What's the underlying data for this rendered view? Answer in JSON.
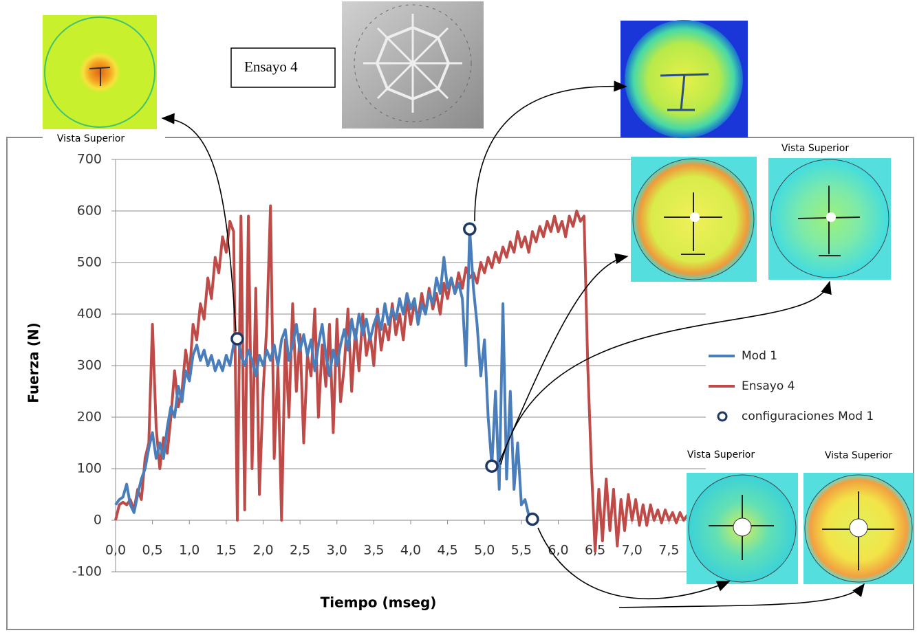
{
  "chart_data": {
    "type": "line",
    "y_label": "Fuerza (N)",
    "x_label": "Tiempo (mseg)",
    "annotations": [
      "Vista Superior",
      "Vista Superior",
      "Vista Superior",
      "Vista Superior",
      "Ensayo 4"
    ],
    "xlim": [
      0,
      8
    ],
    "ylim": [
      -100,
      700
    ],
    "yticks": [
      -100,
      0,
      100,
      200,
      300,
      400,
      500,
      600,
      700
    ],
    "xticks": [
      {
        "value": 0,
        "label": "0,0"
      },
      {
        "value": 0.5,
        "label": "0,5"
      },
      {
        "value": 1,
        "label": "1,0"
      },
      {
        "value": 1.5,
        "label": "1,5"
      },
      {
        "value": 2,
        "label": "2,0"
      },
      {
        "value": 2.5,
        "label": "2,5"
      },
      {
        "value": 3,
        "label": "3,0"
      },
      {
        "value": 3.5,
        "label": "3,5"
      },
      {
        "value": 4,
        "label": "4,0"
      },
      {
        "value": 4.5,
        "label": "4,5"
      },
      {
        "value": 5,
        "label": "5,0"
      },
      {
        "value": 5.5,
        "label": "5,5"
      },
      {
        "value": 6,
        "label": "6,0"
      },
      {
        "value": 6.5,
        "label": "6,5"
      },
      {
        "value": 7,
        "label": "7,0"
      },
      {
        "value": 7.5,
        "label": "7,5"
      }
    ],
    "grid": true,
    "series": [
      {
        "name": "Mod 1",
        "color": "#4a7ebb",
        "style": "line",
        "x": [
          0,
          0.05,
          0.1,
          0.15,
          0.2,
          0.25,
          0.3,
          0.35,
          0.4,
          0.45,
          0.5,
          0.55,
          0.6,
          0.65,
          0.7,
          0.75,
          0.8,
          0.85,
          0.9,
          0.95,
          1,
          1.05,
          1.1,
          1.15,
          1.2,
          1.25,
          1.3,
          1.35,
          1.4,
          1.45,
          1.5,
          1.55,
          1.6,
          1.65,
          1.7,
          1.75,
          1.8,
          1.85,
          1.9,
          1.95,
          2,
          2.05,
          2.1,
          2.15,
          2.2,
          2.25,
          2.3,
          2.35,
          2.4,
          2.45,
          2.5,
          2.55,
          2.6,
          2.65,
          2.7,
          2.75,
          2.8,
          2.85,
          2.9,
          2.95,
          3,
          3.05,
          3.1,
          3.15,
          3.2,
          3.25,
          3.3,
          3.35,
          3.4,
          3.45,
          3.5,
          3.55,
          3.6,
          3.65,
          3.7,
          3.75,
          3.8,
          3.85,
          3.9,
          3.95,
          4,
          4.05,
          4.1,
          4.15,
          4.2,
          4.25,
          4.3,
          4.35,
          4.4,
          4.45,
          4.5,
          4.55,
          4.6,
          4.65,
          4.7,
          4.75,
          4.8,
          4.85,
          4.9,
          4.95,
          5,
          5.05,
          5.1,
          5.15,
          5.2,
          5.25,
          5.3,
          5.35,
          5.4,
          5.45,
          5.5,
          5.55,
          5.6,
          5.65
        ],
        "values": [
          30,
          40,
          45,
          70,
          30,
          15,
          50,
          80,
          100,
          140,
          170,
          120,
          150,
          120,
          180,
          220,
          200,
          260,
          230,
          290,
          270,
          320,
          340,
          310,
          330,
          300,
          320,
          290,
          310,
          290,
          320,
          300,
          340,
          355,
          320,
          300,
          330,
          310,
          280,
          320,
          300,
          330,
          310,
          340,
          300,
          350,
          370,
          310,
          340,
          380,
          330,
          360,
          320,
          350,
          290,
          340,
          380,
          320,
          280,
          330,
          300,
          340,
          370,
          330,
          390,
          350,
          400,
          360,
          390,
          350,
          380,
          400,
          370,
          420,
          380,
          410,
          390,
          430,
          400,
          440,
          410,
          430,
          380,
          420,
          400,
          440,
          420,
          470,
          440,
          510,
          450,
          470,
          440,
          460,
          430,
          300,
          565,
          450,
          380,
          280,
          350,
          200,
          105,
          250,
          60,
          420,
          80,
          250,
          60,
          150,
          30,
          40,
          10,
          2
        ]
      },
      {
        "name": "Ensayo 4",
        "color": "#be4b48",
        "style": "line",
        "x": [
          0,
          0.05,
          0.1,
          0.15,
          0.2,
          0.25,
          0.3,
          0.35,
          0.4,
          0.45,
          0.5,
          0.55,
          0.6,
          0.65,
          0.7,
          0.75,
          0.8,
          0.85,
          0.9,
          0.95,
          1,
          1.05,
          1.1,
          1.15,
          1.2,
          1.25,
          1.3,
          1.35,
          1.4,
          1.45,
          1.5,
          1.55,
          1.6,
          1.65,
          1.7,
          1.75,
          1.8,
          1.85,
          1.9,
          1.95,
          2,
          2.05,
          2.1,
          2.15,
          2.2,
          2.25,
          2.3,
          2.35,
          2.4,
          2.45,
          2.5,
          2.55,
          2.6,
          2.65,
          2.7,
          2.75,
          2.8,
          2.85,
          2.9,
          2.95,
          3,
          3.05,
          3.1,
          3.15,
          3.2,
          3.25,
          3.3,
          3.35,
          3.4,
          3.45,
          3.5,
          3.55,
          3.6,
          3.65,
          3.7,
          3.75,
          3.8,
          3.85,
          3.9,
          3.95,
          4,
          4.05,
          4.1,
          4.15,
          4.2,
          4.25,
          4.3,
          4.35,
          4.4,
          4.45,
          4.5,
          4.55,
          4.6,
          4.65,
          4.7,
          4.75,
          4.8,
          4.85,
          4.9,
          4.95,
          5,
          5.05,
          5.1,
          5.15,
          5.2,
          5.25,
          5.3,
          5.35,
          5.4,
          5.45,
          5.5,
          5.55,
          5.6,
          5.65,
          5.7,
          5.75,
          5.8,
          5.85,
          5.9,
          5.95,
          6,
          6.05,
          6.1,
          6.15,
          6.2,
          6.25,
          6.3,
          6.35,
          6.4,
          6.45,
          6.5,
          6.55,
          6.6,
          6.65,
          6.7,
          6.75,
          6.8,
          6.85,
          6.9,
          6.95,
          7,
          7.05,
          7.1,
          7.15,
          7.2,
          7.25,
          7.3,
          7.35,
          7.4,
          7.45,
          7.5,
          7.55,
          7.6,
          7.65,
          7.7,
          7.75,
          7.8,
          7.85,
          7.9,
          7.95,
          8
        ],
        "values": [
          0,
          30,
          35,
          30,
          40,
          20,
          60,
          40,
          120,
          150,
          380,
          180,
          100,
          160,
          130,
          200,
          290,
          220,
          250,
          330,
          280,
          380,
          350,
          420,
          390,
          470,
          430,
          510,
          480,
          550,
          520,
          580,
          560,
          0,
          590,
          20,
          590,
          100,
          450,
          50,
          250,
          380,
          610,
          120,
          300,
          0,
          350,
          200,
          420,
          250,
          360,
          150,
          320,
          280,
          410,
          200,
          340,
          260,
          380,
          170,
          390,
          230,
          300,
          410,
          250,
          370,
          290,
          400,
          320,
          360,
          300,
          410,
          330,
          380,
          350,
          420,
          360,
          400,
          350,
          430,
          380,
          420,
          390,
          440,
          400,
          450,
          410,
          440,
          400,
          460,
          430,
          470,
          440,
          480,
          450,
          490,
          470,
          480,
          460,
          500,
          480,
          510,
          490,
          520,
          500,
          530,
          510,
          540,
          520,
          560,
          530,
          550,
          520,
          560,
          540,
          570,
          550,
          580,
          560,
          590,
          560,
          580,
          550,
          590,
          570,
          600,
          580,
          590,
          300,
          100,
          -60,
          60,
          -40,
          80,
          -20,
          60,
          -50,
          40,
          -20,
          50,
          0,
          40,
          -10,
          30,
          -10,
          30,
          0,
          20,
          -5,
          20,
          0,
          15,
          -5,
          15,
          0,
          10,
          0,
          10,
          0,
          5,
          0
        ]
      },
      {
        "name": "configuraciones Mod 1",
        "color": "#1f3864",
        "style": "marker",
        "x": [
          1.65,
          4.8,
          5.1,
          5.65
        ],
        "values": [
          352,
          565,
          105,
          2
        ]
      }
    ]
  }
}
